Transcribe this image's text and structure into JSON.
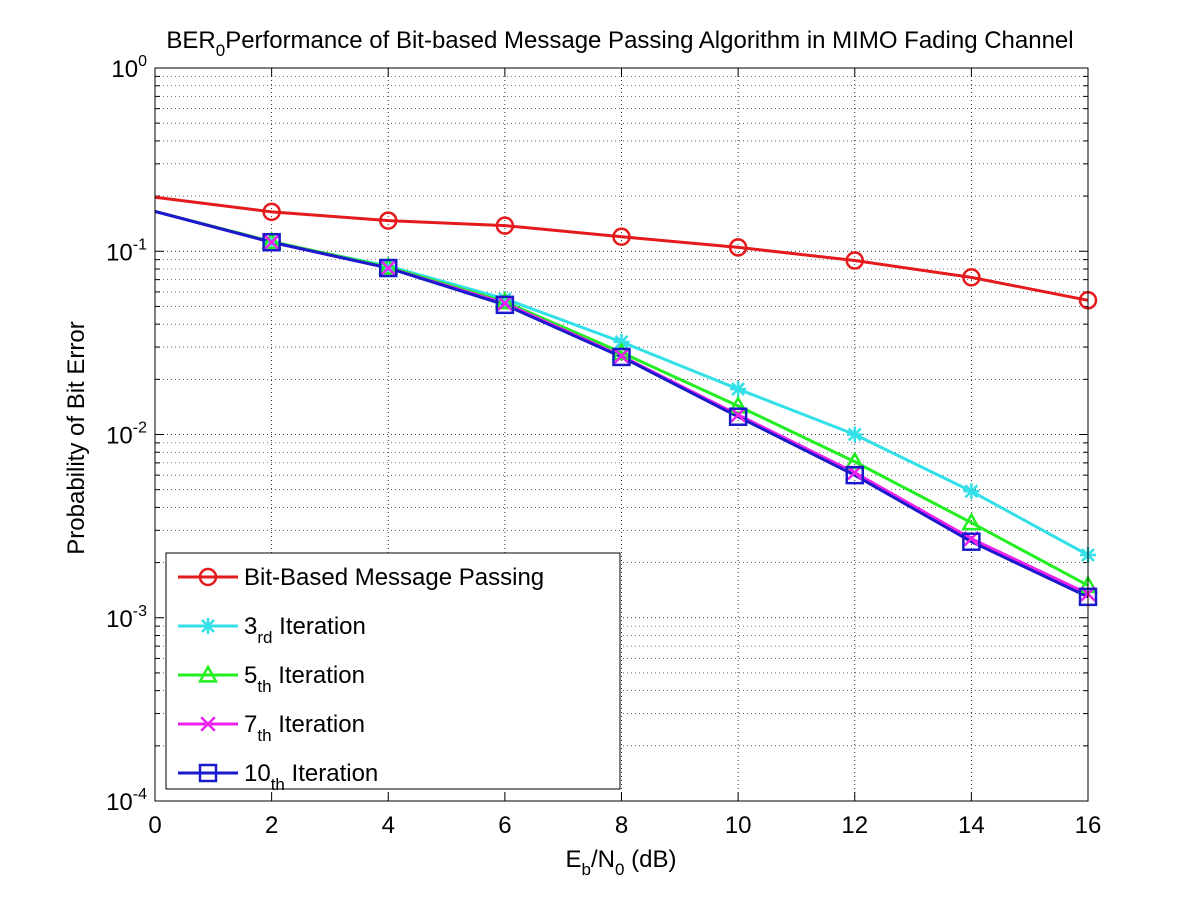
{
  "chart_data": {
    "type": "line",
    "title": "BER",
    "title_sub": "0",
    "title_rest": "Performance of Bit-based Message Passing Algorithm in MIMO Fading Channel",
    "xlabel_main": "E",
    "xlabel_sub1": "b",
    "xlabel_mid": "/N",
    "xlabel_sub2": "0",
    "xlabel_tail": " (dB)",
    "ylabel": "Probability of Bit Error",
    "xlim": [
      0,
      16
    ],
    "ylim": [
      0.0001,
      1
    ],
    "yscale": "log",
    "grid": true,
    "legend_position": "bottom-left",
    "x_ticks": [
      "0",
      "2",
      "4",
      "6",
      "8",
      "10",
      "12",
      "14",
      "16"
    ],
    "y_ticks": [
      {
        "base": "10",
        "exp": "0"
      },
      {
        "base": "10",
        "exp": "-1"
      },
      {
        "base": "10",
        "exp": "-2"
      },
      {
        "base": "10",
        "exp": "-3"
      },
      {
        "base": "10",
        "exp": "-4"
      }
    ],
    "series": [
      {
        "name": "Bit-Based Message Passing",
        "legend_main": "Bit-Based Message Passing",
        "legend_sub": "",
        "legend_tail": "",
        "color": "#e41a1c",
        "marker": "circle",
        "x": [
          0,
          2,
          4,
          6,
          8,
          10,
          12,
          14,
          16
        ],
        "y": [
          0.197,
          0.164,
          0.147,
          0.138,
          0.12,
          0.105,
          0.089,
          0.072,
          0.054
        ],
        "marked": [
          false,
          true,
          true,
          true,
          true,
          true,
          true,
          true,
          true
        ]
      },
      {
        "name": "3rd Iteration",
        "legend_main": "3",
        "legend_sub": "rd",
        "legend_tail": " Iteration",
        "color": "#33e0e8",
        "marker": "star",
        "x": [
          0,
          2,
          4,
          6,
          8,
          10,
          12,
          14,
          16
        ],
        "y": [
          0.165,
          0.112,
          0.083,
          0.055,
          0.032,
          0.0177,
          0.01,
          0.0049,
          0.0022
        ],
        "marked": [
          false,
          true,
          true,
          true,
          true,
          true,
          true,
          true,
          true
        ]
      },
      {
        "name": "5th Iteration",
        "legend_main": "5",
        "legend_sub": "th",
        "legend_tail": " Iteration",
        "color": "#22ee22",
        "marker": "triangle",
        "x": [
          0,
          2,
          4,
          6,
          8,
          10,
          12,
          14,
          16
        ],
        "y": [
          0.165,
          0.113,
          0.082,
          0.053,
          0.028,
          0.0143,
          0.0071,
          0.0033,
          0.0015
        ],
        "marked": [
          false,
          true,
          true,
          true,
          true,
          true,
          true,
          true,
          true
        ]
      },
      {
        "name": "7th Iteration",
        "legend_main": "7",
        "legend_sub": "th",
        "legend_tail": " Iteration",
        "color": "#ee22ee",
        "marker": "x",
        "x": [
          0,
          2,
          4,
          6,
          8,
          10,
          12,
          14,
          16
        ],
        "y": [
          0.165,
          0.112,
          0.081,
          0.052,
          0.0268,
          0.0128,
          0.0062,
          0.0027,
          0.00135
        ],
        "marked": [
          false,
          true,
          true,
          true,
          true,
          true,
          true,
          true,
          true
        ]
      },
      {
        "name": "10th Iteration",
        "legend_main": "10",
        "legend_sub": "th",
        "legend_tail": " Iteration",
        "color": "#1a1acc",
        "marker": "square",
        "x": [
          0,
          2,
          4,
          6,
          8,
          10,
          12,
          14,
          16
        ],
        "y": [
          0.165,
          0.112,
          0.081,
          0.051,
          0.0265,
          0.0125,
          0.006,
          0.0026,
          0.0013
        ],
        "marked": [
          false,
          true,
          true,
          true,
          true,
          true,
          true,
          true,
          true
        ]
      }
    ]
  }
}
